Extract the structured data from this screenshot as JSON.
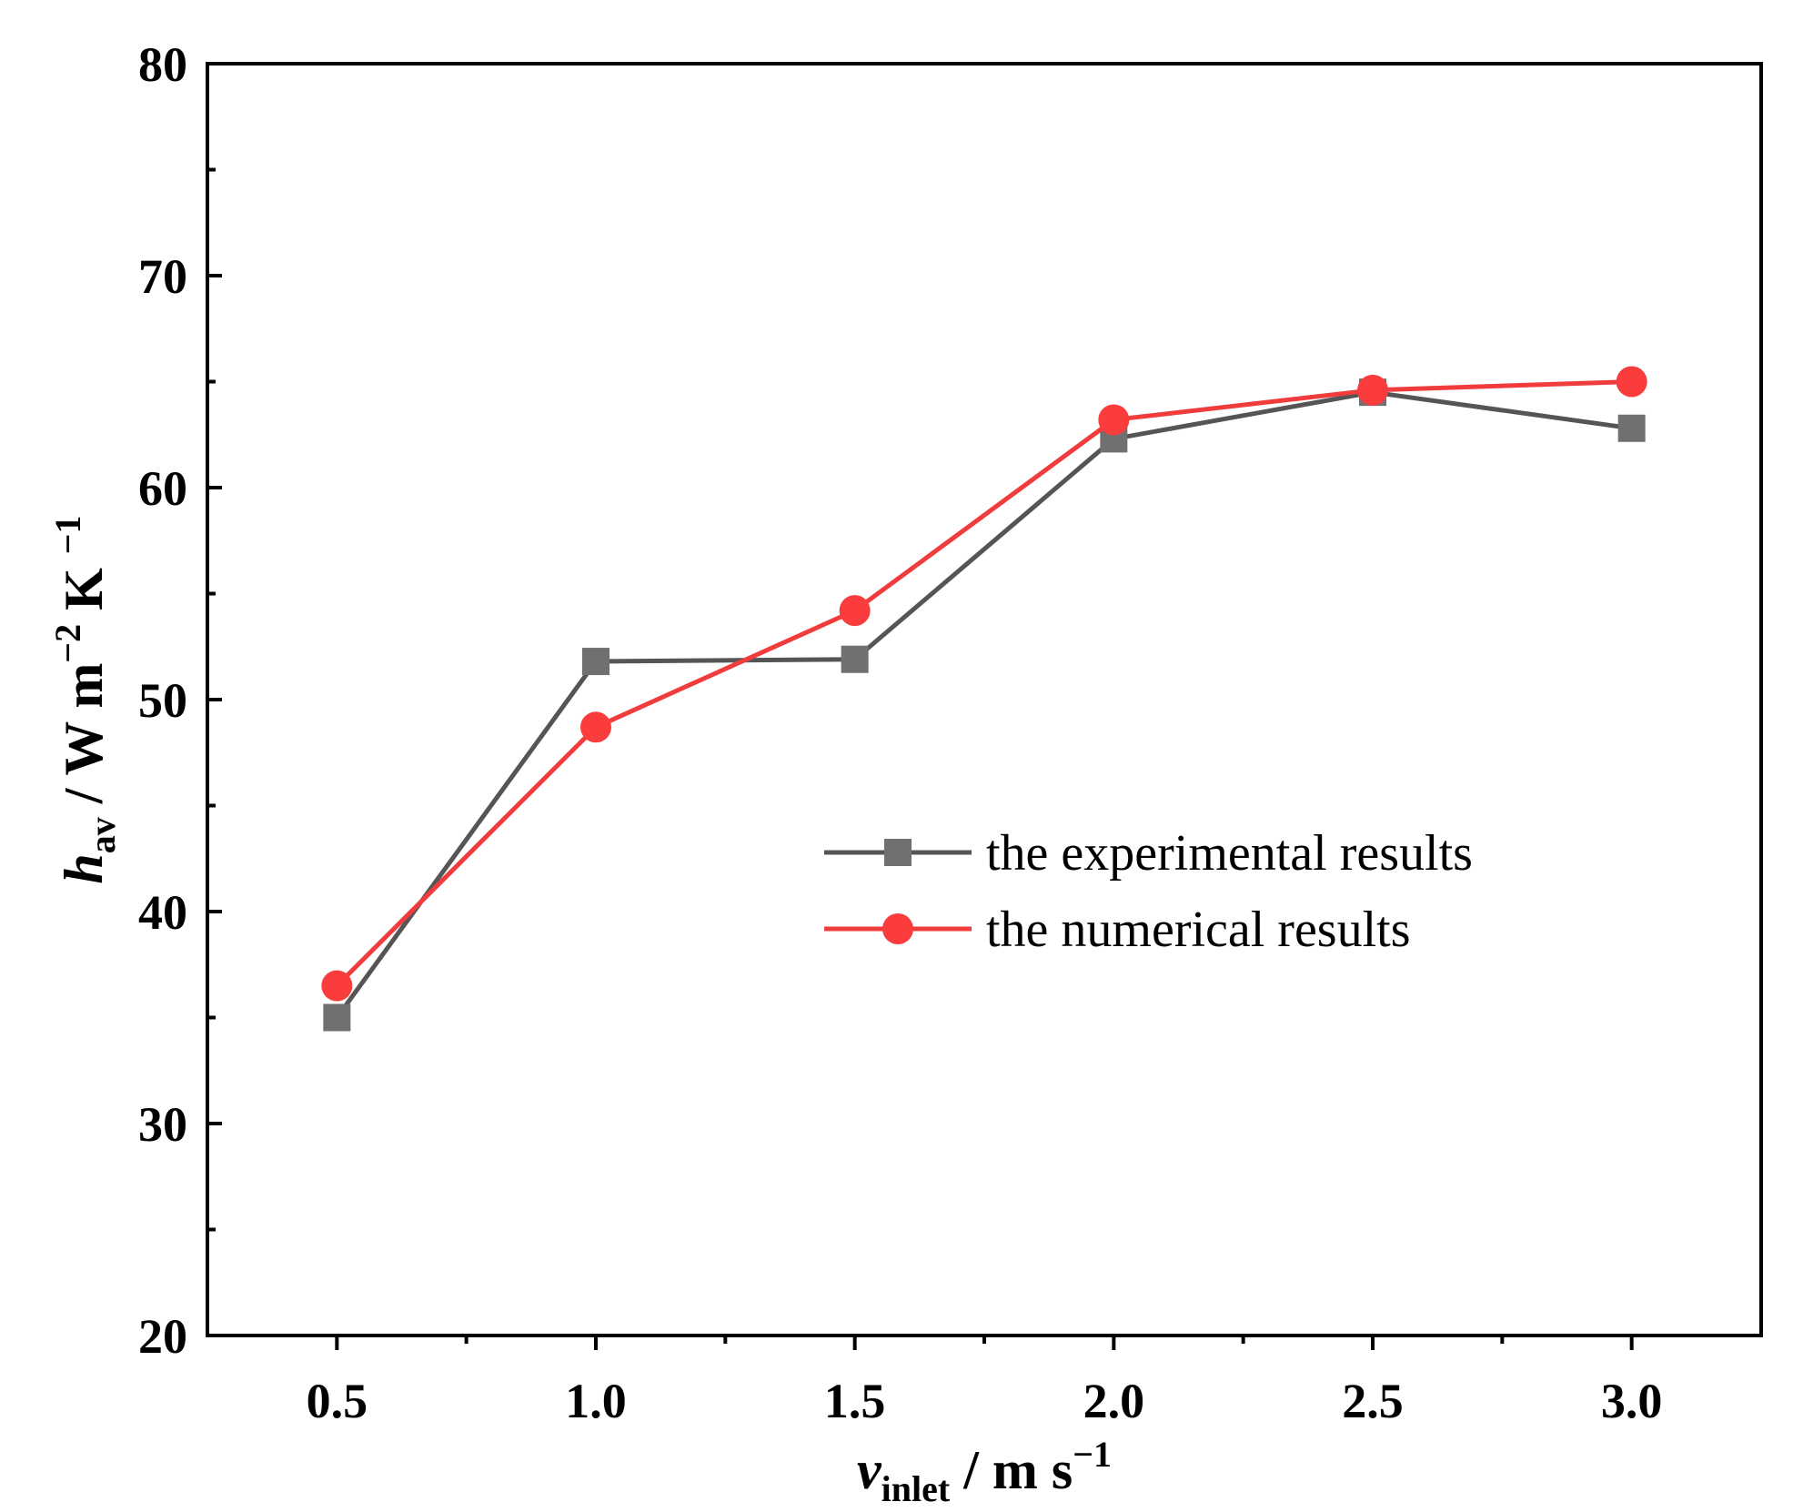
{
  "chart_data": {
    "type": "line",
    "x": [
      0.5,
      1.0,
      1.5,
      2.0,
      2.5,
      3.0
    ],
    "x_tick_labels": [
      "0.5",
      "1.0",
      "1.5",
      "2.0",
      "2.5",
      "3.0"
    ],
    "y_ticks": [
      20,
      30,
      40,
      50,
      60,
      70,
      80
    ],
    "y_tick_labels": [
      "20",
      "30",
      "40",
      "50",
      "60",
      "70",
      "80"
    ],
    "xlim": [
      0.25,
      3.25
    ],
    "ylim": [
      20,
      80
    ],
    "xlabel": {
      "main": "v",
      "sub": "inlet",
      "rest": " / m s",
      "sup": "−1"
    },
    "ylabel": {
      "main": "h",
      "sub": "av",
      "rest": " / W m",
      "sup": "−2",
      "rest2": " K ",
      "sup2": "−1"
    },
    "legend_position": "right-middle",
    "series": [
      {
        "name": "the experimental results",
        "marker": "square",
        "color": "#555555",
        "marker_color": "#707070",
        "values": [
          35.0,
          51.8,
          51.9,
          62.3,
          64.5,
          62.8
        ]
      },
      {
        "name": "the numerical results",
        "marker": "circle",
        "color": "#f03c3c",
        "marker_color": "#fb3c3c",
        "values": [
          36.5,
          48.7,
          54.2,
          63.2,
          64.6,
          65.0
        ]
      }
    ]
  }
}
